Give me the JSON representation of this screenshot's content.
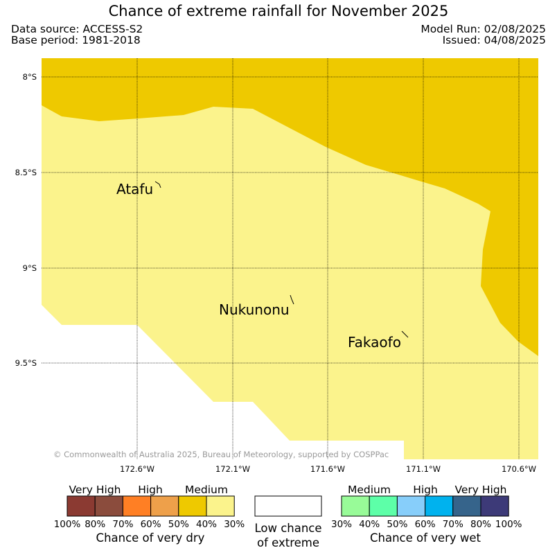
{
  "title": "Chance of extreme rainfall for November 2025",
  "data_source": "Data source: ACCESS-S2",
  "base_period": "Base period: 1981-2018",
  "model_run": "Model Run: 02/08/2025",
  "issued": "Issued: 04/08/2025",
  "map": {
    "lat_labels": [
      "8°S",
      "8.5°S",
      "9°S",
      "9.5°S"
    ],
    "lon_labels": [
      "172.6°W",
      "172.1°W",
      "171.6°W",
      "171.1°W",
      "170.6°W"
    ],
    "places": [
      {
        "name": "Atafu"
      },
      {
        "name": "Nukunonu"
      },
      {
        "name": "Fakaofo"
      }
    ],
    "copyright": "© Commonwealth of Australia 2025, Bureau of Meteorology, supported by COSPPac",
    "colors": {
      "medium_dry": "#eec900",
      "low_dry": "#fbf38c",
      "none": "#ffffff"
    }
  },
  "legend": {
    "dry": {
      "headings": [
        "Very High",
        "High",
        "Medium"
      ],
      "colors": [
        "#8b3a32",
        "#8b4c3d",
        "#ff7f24",
        "#eea04a",
        "#eec900",
        "#fbf38c"
      ],
      "ticks": [
        "100%",
        "80%",
        "70%",
        "60%",
        "50%",
        "40%",
        "30%"
      ],
      "caption": "Chance of very dry"
    },
    "neutral": {
      "color": "#ffffff",
      "caption_line1": "Low chance",
      "caption_line2": "of extreme"
    },
    "wet": {
      "headings": [
        "Medium",
        "High",
        "Very High"
      ],
      "colors": [
        "#98fb98",
        "#5dffa8",
        "#87cefa",
        "#00b2ee",
        "#36648b",
        "#3d3a78"
      ],
      "ticks": [
        "30%",
        "40%",
        "50%",
        "60%",
        "70%",
        "80%",
        "100%"
      ],
      "caption": "Chance of very wet"
    }
  }
}
